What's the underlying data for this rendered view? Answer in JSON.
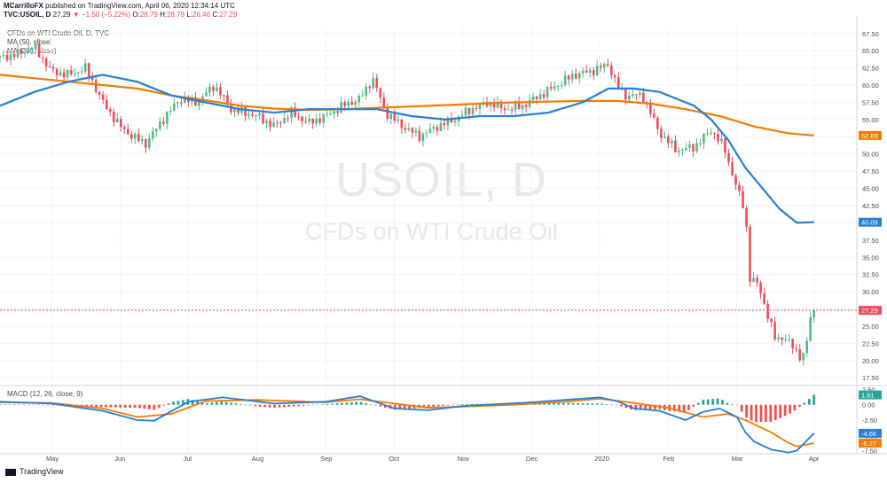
{
  "header": {
    "author": "MCarrilloFX",
    "published": "published on TradingView.com, April 06, 2020 12:34:14 UTC",
    "symbol": "TVC:USOIL, D",
    "price": "27.29",
    "change": "−1.50 (−5.22%)",
    "o_label": "O:",
    "o": "28.79",
    "h_label": "H:",
    "h": "28.79",
    "l_label": "L:",
    "l": "26.46",
    "c_label": "C:",
    "c": "27.29"
  },
  "legend": {
    "title": "CFDs on WTI Crude Oil, D, TVC",
    "ma50": "MA (50, close)",
    "ma200": "MA (200, close)"
  },
  "watermark": {
    "symbol": "USOIL, D",
    "description": "CFDs on WTI Crude Oil"
  },
  "macd_label": "MACD (12, 26, close, 9)",
  "footer": {
    "brand": "TradingView"
  },
  "colors": {
    "up": "#53b987",
    "down": "#eb4d5c",
    "ma50": "#2a7ed3",
    "ma200": "#f57c00",
    "grid": "#f0f3fa",
    "price_line": "#eb4d5c"
  },
  "chart_data": [
    {
      "type": "candlestick",
      "ylim": [
        16.5,
        68.5
      ],
      "y_ticks": [
        "67.50",
        "65.00",
        "62.50",
        "60.00",
        "57.50",
        "55.00",
        "52.50",
        "50.00",
        "47.50",
        "45.00",
        "42.50",
        "40.00",
        "37.50",
        "35.00",
        "32.50",
        "30.00",
        "27.50",
        "25.00",
        "22.50",
        "20.00",
        "17.50"
      ],
      "x_labels": [
        "May",
        "Jun",
        "Jul",
        "Aug",
        "Sep",
        "Oct",
        "Nov",
        "Dec",
        "2020",
        "Feb",
        "Mar",
        "Apr"
      ],
      "x_label_positions": [
        0.06,
        0.14,
        0.22,
        0.3,
        0.38,
        0.46,
        0.54,
        0.62,
        0.7,
        0.78,
        0.86,
        0.95
      ],
      "close_path": [
        [
          0,
          64
        ],
        [
          0.02,
          64.5
        ],
        [
          0.04,
          65.5
        ],
        [
          0.06,
          62
        ],
        [
          0.08,
          61.5
        ],
        [
          0.1,
          62.5
        ],
        [
          0.12,
          57.5
        ],
        [
          0.14,
          54
        ],
        [
          0.155,
          52.5
        ],
        [
          0.17,
          51.5
        ],
        [
          0.19,
          55
        ],
        [
          0.21,
          58
        ],
        [
          0.23,
          57.5
        ],
        [
          0.25,
          60
        ],
        [
          0.27,
          56.5
        ],
        [
          0.3,
          55.5
        ],
        [
          0.32,
          54
        ],
        [
          0.34,
          56
        ],
        [
          0.36,
          54.5
        ],
        [
          0.38,
          55.5
        ],
        [
          0.4,
          57
        ],
        [
          0.42,
          58
        ],
        [
          0.435,
          61
        ],
        [
          0.45,
          56
        ],
        [
          0.47,
          54
        ],
        [
          0.49,
          52.5
        ],
        [
          0.51,
          54
        ],
        [
          0.53,
          55
        ],
        [
          0.55,
          56.5
        ],
        [
          0.57,
          57.5
        ],
        [
          0.59,
          56.5
        ],
        [
          0.61,
          57
        ],
        [
          0.63,
          58.5
        ],
        [
          0.65,
          60
        ],
        [
          0.67,
          61.5
        ],
        [
          0.69,
          62
        ],
        [
          0.71,
          63
        ],
        [
          0.72,
          60
        ],
        [
          0.73,
          58.5
        ],
        [
          0.75,
          58.5
        ],
        [
          0.77,
          53
        ],
        [
          0.79,
          50.5
        ],
        [
          0.81,
          51
        ],
        [
          0.83,
          53.5
        ],
        [
          0.845,
          51
        ],
        [
          0.86,
          45
        ],
        [
          0.87,
          41.5
        ],
        [
          0.875,
          32
        ],
        [
          0.885,
          31
        ],
        [
          0.895,
          27
        ],
        [
          0.905,
          23
        ],
        [
          0.915,
          23.5
        ],
        [
          0.925,
          22
        ],
        [
          0.935,
          20.5
        ],
        [
          0.94,
          21
        ],
        [
          0.945,
          26
        ],
        [
          0.95,
          27.29
        ]
      ],
      "ma50": [
        [
          0,
          57
        ],
        [
          0.04,
          59
        ],
        [
          0.08,
          60.5
        ],
        [
          0.12,
          61.5
        ],
        [
          0.16,
          60.5
        ],
        [
          0.2,
          58.5
        ],
        [
          0.24,
          57.5
        ],
        [
          0.28,
          56.5
        ],
        [
          0.32,
          56
        ],
        [
          0.36,
          56.5
        ],
        [
          0.4,
          56.5
        ],
        [
          0.44,
          56.5
        ],
        [
          0.48,
          55.5
        ],
        [
          0.52,
          55
        ],
        [
          0.56,
          55.5
        ],
        [
          0.6,
          55.5
        ],
        [
          0.64,
          56
        ],
        [
          0.68,
          57.5
        ],
        [
          0.71,
          59.5
        ],
        [
          0.74,
          59.5
        ],
        [
          0.77,
          59
        ],
        [
          0.79,
          58
        ],
        [
          0.81,
          57
        ],
        [
          0.83,
          55
        ],
        [
          0.85,
          52
        ],
        [
          0.87,
          48
        ],
        [
          0.89,
          45
        ],
        [
          0.91,
          42
        ],
        [
          0.93,
          40
        ],
        [
          0.95,
          40.09
        ]
      ],
      "ma200": [
        [
          0,
          61.5
        ],
        [
          0.04,
          61
        ],
        [
          0.08,
          60.5
        ],
        [
          0.12,
          60
        ],
        [
          0.16,
          59.5
        ],
        [
          0.2,
          58.5
        ],
        [
          0.24,
          57.8
        ],
        [
          0.28,
          57
        ],
        [
          0.32,
          56.6
        ],
        [
          0.36,
          56.4
        ],
        [
          0.4,
          56.5
        ],
        [
          0.44,
          56.7
        ],
        [
          0.48,
          56.9
        ],
        [
          0.52,
          57.1
        ],
        [
          0.56,
          57.3
        ],
        [
          0.6,
          57.5
        ],
        [
          0.64,
          57.6
        ],
        [
          0.68,
          57.7
        ],
        [
          0.72,
          57.7
        ],
        [
          0.76,
          57.3
        ],
        [
          0.8,
          56.5
        ],
        [
          0.84,
          55.5
        ],
        [
          0.88,
          54
        ],
        [
          0.92,
          53
        ],
        [
          0.95,
          52.69
        ]
      ],
      "last_price": 27.29
    },
    {
      "type": "macd",
      "ylim": [
        -8,
        3
      ],
      "y_ticks": [
        "2.50",
        "0.00",
        "-2.50",
        "-5.00",
        "-7.50"
      ],
      "macd": [
        [
          0,
          0.5
        ],
        [
          0.06,
          0.2
        ],
        [
          0.12,
          -1
        ],
        [
          0.16,
          -2.5
        ],
        [
          0.18,
          -2.6
        ],
        [
          0.22,
          0.5
        ],
        [
          0.26,
          1.2
        ],
        [
          0.32,
          0.2
        ],
        [
          0.38,
          0.5
        ],
        [
          0.42,
          1.4
        ],
        [
          0.46,
          -0.6
        ],
        [
          0.5,
          -0.9
        ],
        [
          0.54,
          -0.2
        ],
        [
          0.58,
          0.1
        ],
        [
          0.62,
          0.4
        ],
        [
          0.66,
          0.8
        ],
        [
          0.7,
          1.2
        ],
        [
          0.72,
          0.6
        ],
        [
          0.74,
          -0.6
        ],
        [
          0.77,
          -1
        ],
        [
          0.8,
          -2.5
        ],
        [
          0.82,
          -1.2
        ],
        [
          0.84,
          -0.6
        ],
        [
          0.86,
          -2
        ],
        [
          0.87,
          -4.5
        ],
        [
          0.88,
          -6
        ],
        [
          0.9,
          -7.3
        ],
        [
          0.92,
          -7.8
        ],
        [
          0.93,
          -7.5
        ],
        [
          0.95,
          -4.66
        ]
      ],
      "signal": [
        [
          0,
          0.4
        ],
        [
          0.06,
          0.3
        ],
        [
          0.12,
          -0.6
        ],
        [
          0.16,
          -2
        ],
        [
          0.2,
          -1.5
        ],
        [
          0.24,
          0.6
        ],
        [
          0.3,
          0.8
        ],
        [
          0.38,
          0.4
        ],
        [
          0.42,
          0.9
        ],
        [
          0.46,
          0.2
        ],
        [
          0.5,
          -0.5
        ],
        [
          0.54,
          -0.3
        ],
        [
          0.6,
          0
        ],
        [
          0.66,
          0.5
        ],
        [
          0.7,
          1
        ],
        [
          0.74,
          0.3
        ],
        [
          0.78,
          -0.5
        ],
        [
          0.82,
          -2
        ],
        [
          0.85,
          -1.5
        ],
        [
          0.87,
          -2.5
        ],
        [
          0.9,
          -4.5
        ],
        [
          0.92,
          -6.2
        ],
        [
          0.93,
          -6.8
        ],
        [
          0.95,
          -6.27
        ]
      ],
      "histogram_last": 1.61,
      "tags": {
        "hist": "1.61",
        "macd": "-4.66",
        "signal": "-6.27"
      }
    }
  ],
  "price_tags": {
    "ma200": "52.69",
    "ma50": "40.09",
    "last": "27.29"
  }
}
